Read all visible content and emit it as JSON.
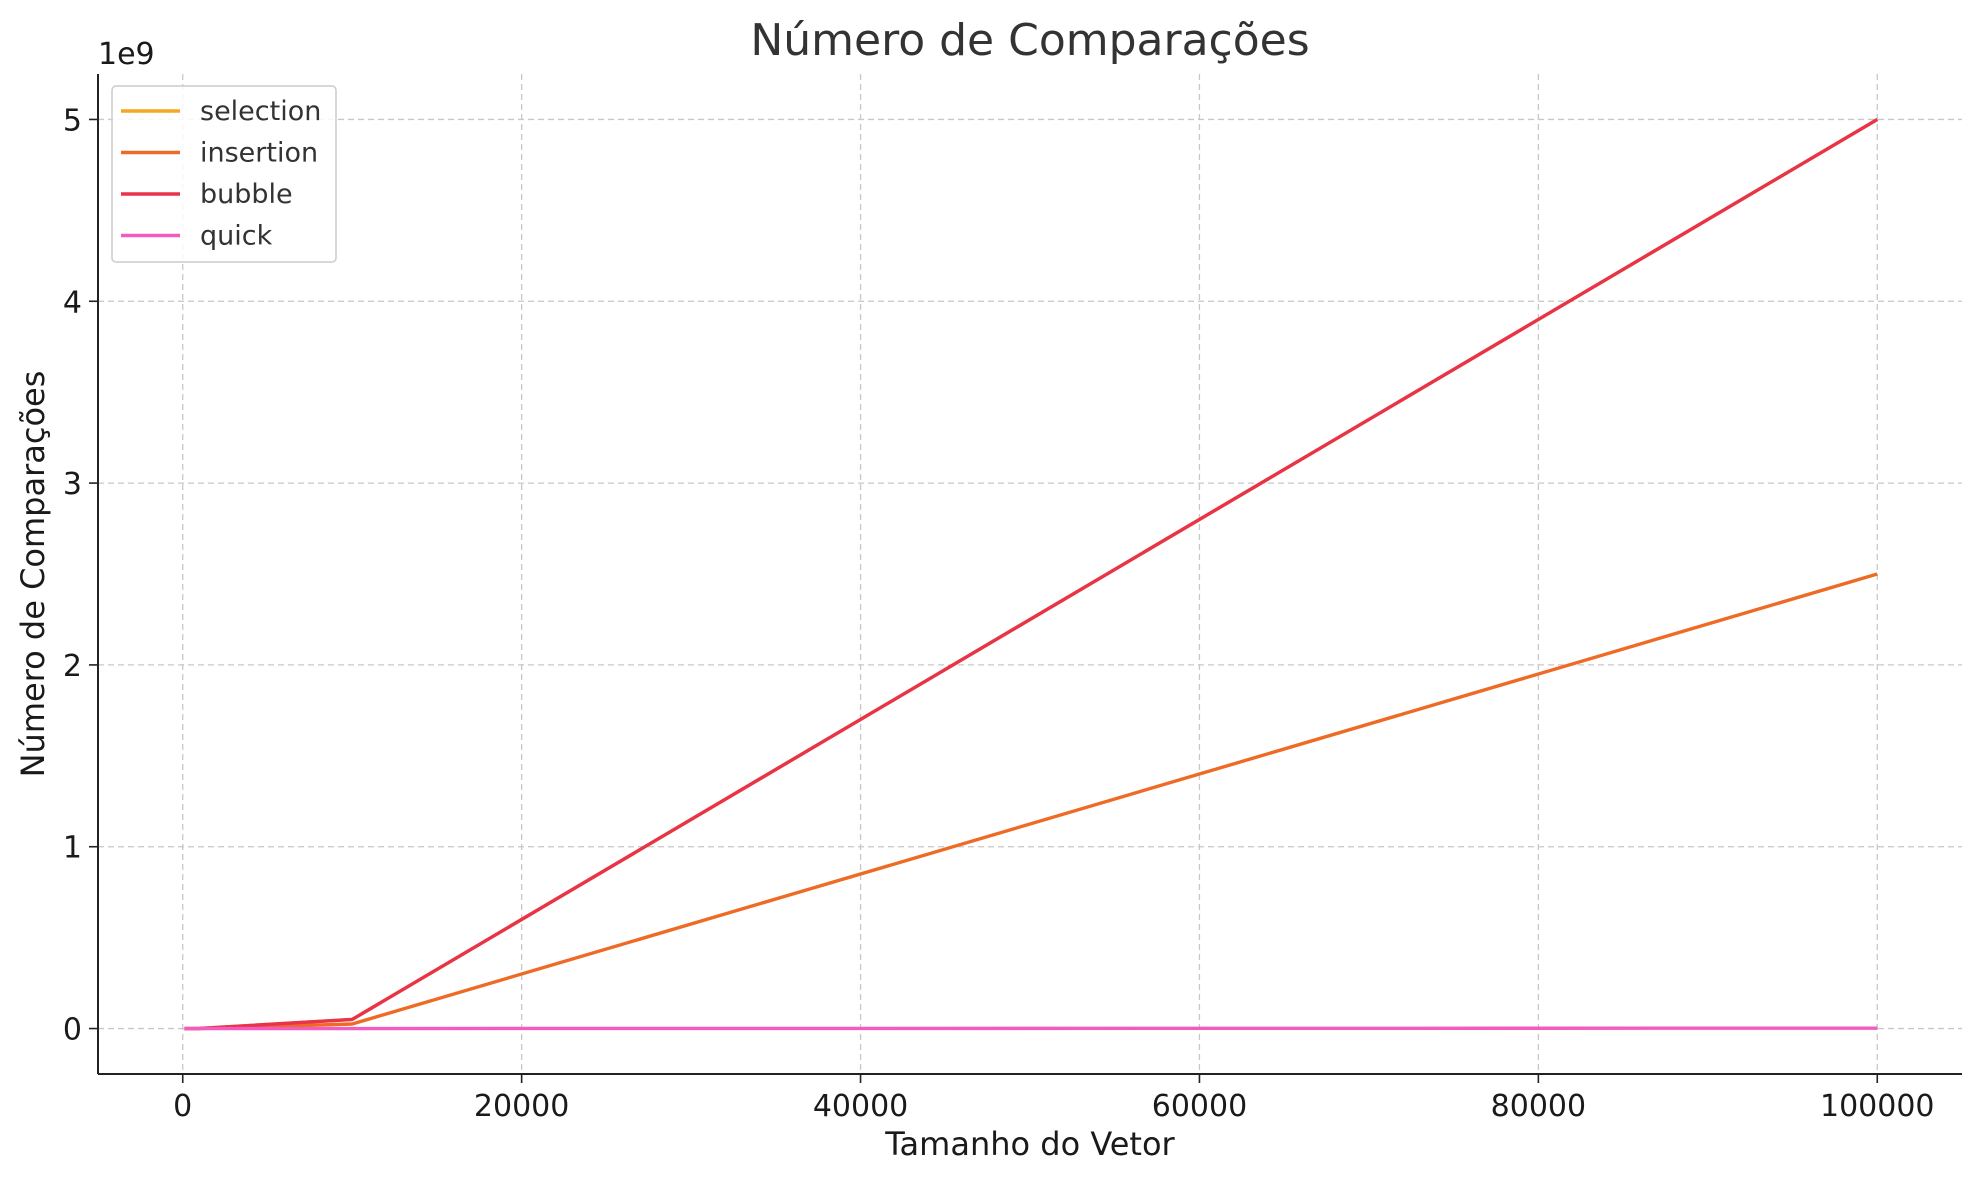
{
  "chart_data": {
    "type": "line",
    "title": "Número de Comparações",
    "xlabel": "Tamanho do Vetor",
    "ylabel": "Número de Comparações",
    "y_offset_label": "1e9",
    "x": [
      100,
      1000,
      10000,
      100000
    ],
    "xlim": [
      -5000,
      105000
    ],
    "ylim": [
      -0.25,
      5.25
    ],
    "x_ticks": [
      0,
      20000,
      40000,
      60000,
      80000,
      100000
    ],
    "x_tick_labels": [
      "0",
      "20000",
      "40000",
      "60000",
      "80000",
      "100000"
    ],
    "y_ticks": [
      0,
      1,
      2,
      3,
      4,
      5
    ],
    "y_tick_labels": [
      "0",
      "1",
      "2",
      "3",
      "4",
      "5"
    ],
    "grid": true,
    "legend_position": "top-left",
    "series": [
      {
        "name": "selection",
        "color": "#f5a623",
        "values": [
          4.95e-06,
          0.0004995,
          0.049995,
          4.99995
        ]
      },
      {
        "name": "insertion",
        "color": "#ee6b26",
        "values": [
          2.5e-06,
          0.00025,
          0.025,
          2.5
        ]
      },
      {
        "name": "bubble",
        "color": "#e8334a",
        "values": [
          4.95e-06,
          0.0004995,
          0.049995,
          4.99995
        ]
      },
      {
        "name": "quick",
        "color": "#f25cc0",
        "values": [
          8e-07,
          1.1e-05,
          0.000155,
          0.002
        ]
      }
    ]
  }
}
